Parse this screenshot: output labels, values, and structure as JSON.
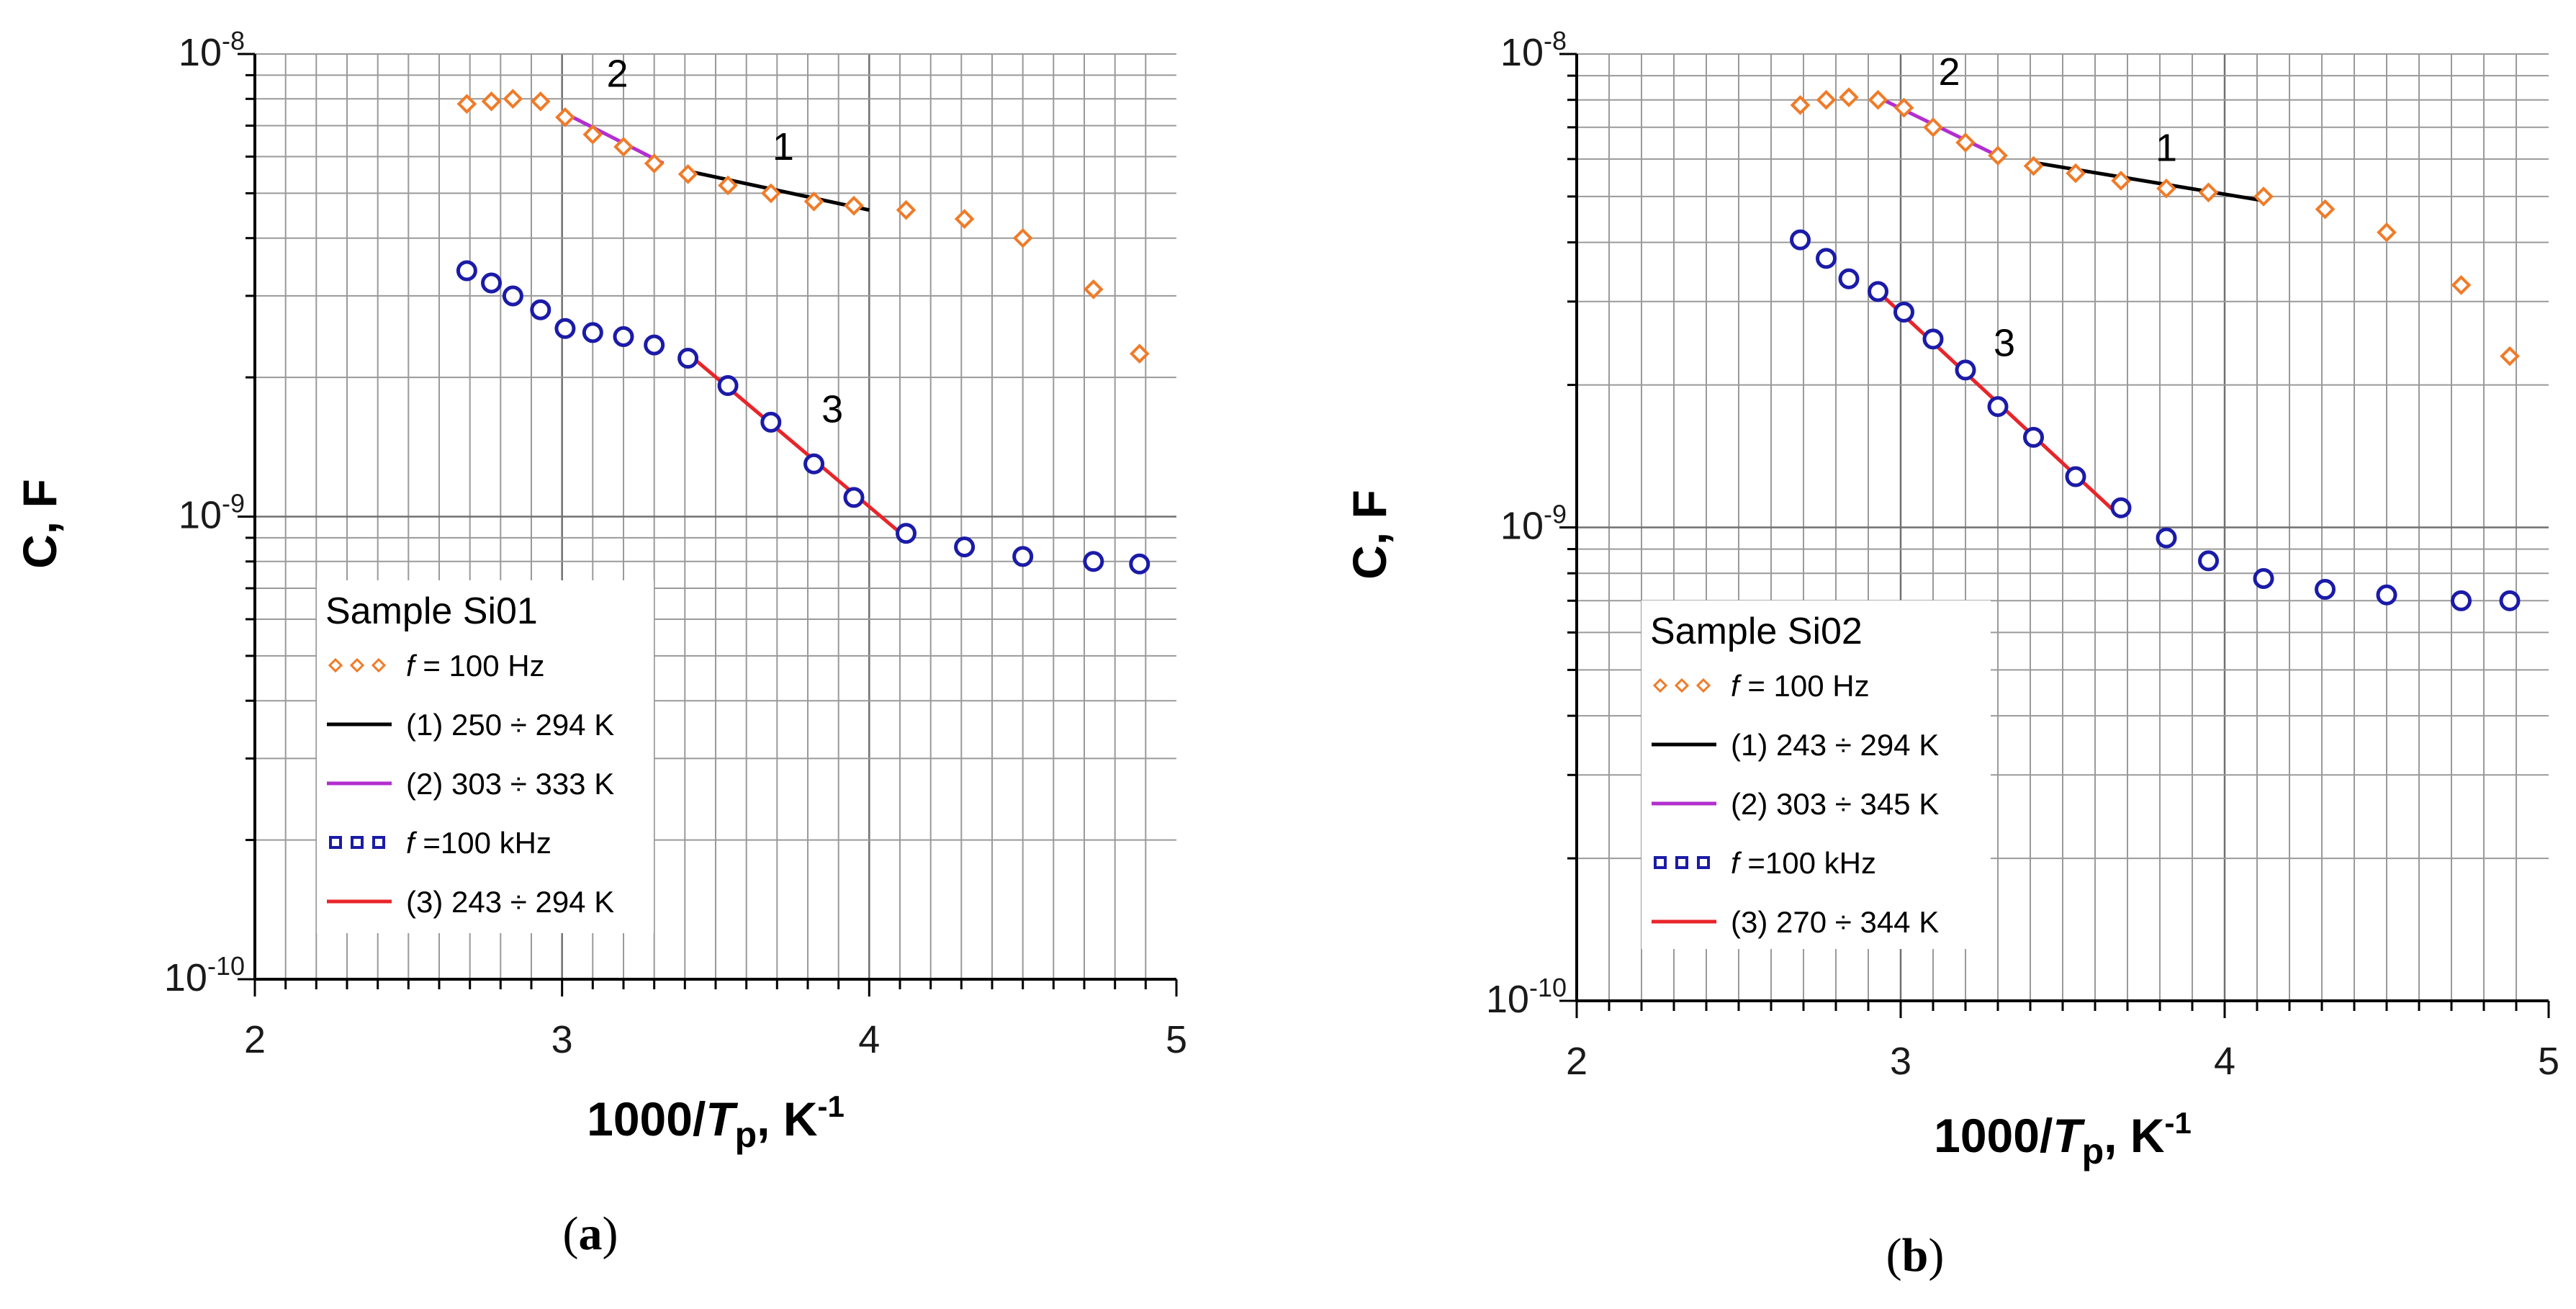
{
  "chart_data": [
    {
      "type": "scatter",
      "panel": "(a)",
      "panel_letter": "a",
      "xlabel": "1000/Tp, K-1",
      "ylabel": "C, F",
      "x_scale": "linear",
      "y_scale": "log",
      "xlim": [
        2,
        5
      ],
      "ylim": [
        1e-10,
        1e-08
      ],
      "x_ticks": [
        "2",
        "3",
        "4",
        "5"
      ],
      "y_ticks": [
        {
          "base": "10",
          "exp": "-10"
        },
        {
          "base": "10",
          "exp": "-9"
        },
        {
          "base": "10",
          "exp": "-8"
        }
      ],
      "grid": true,
      "legend": {
        "title": "Sample Si01",
        "placement": "lower-left",
        "entries": [
          {
            "kind": "marker",
            "color": "#f07b28",
            "italic": "f",
            "text": " = 100 Hz"
          },
          {
            "kind": "line",
            "color": "#000000",
            "text": "(1) 250 ÷ 294 K"
          },
          {
            "kind": "line",
            "color": "#b22fcf",
            "text": "(2) 303 ÷ 333 K"
          },
          {
            "kind": "marker",
            "color": "#1b1ba8",
            "italic": "f",
            "text": " =100 kHz"
          },
          {
            "kind": "line",
            "color": "#e8252a",
            "text": "(3) 243 ÷ 294 K"
          }
        ]
      },
      "series": [
        {
          "name": "f = 100 Hz",
          "marker": "diamond",
          "color": "#f07b28",
          "x": [
            2.69,
            2.77,
            2.84,
            2.93,
            3.01,
            3.1,
            3.2,
            3.3,
            3.41,
            3.54,
            3.68,
            3.82,
            3.95,
            4.12,
            4.31,
            4.5,
            4.73,
            4.88
          ],
          "y": [
            7.8e-09,
            7.9e-09,
            8e-09,
            7.9e-09,
            7.3e-09,
            6.7e-09,
            6.3e-09,
            5.8e-09,
            5.5e-09,
            5.2e-09,
            5e-09,
            4.8e-09,
            4.7e-09,
            4.6e-09,
            4.4e-09,
            4e-09,
            3.1e-09,
            2.25e-09
          ]
        },
        {
          "name": "f =100 kHz",
          "marker": "circle",
          "color": "#1b1ba8",
          "x": [
            2.69,
            2.77,
            2.84,
            2.93,
            3.01,
            3.1,
            3.2,
            3.3,
            3.41,
            3.54,
            3.68,
            3.82,
            3.95,
            4.12,
            4.31,
            4.5,
            4.73,
            4.88
          ],
          "y": [
            3.4e-09,
            3.2e-09,
            3e-09,
            2.8e-09,
            2.55e-09,
            2.5e-09,
            2.45e-09,
            2.35e-09,
            2.2e-09,
            1.92e-09,
            1.6e-09,
            1.3e-09,
            1.1e-09,
            9.2e-10,
            8.6e-10,
            8.2e-10,
            8e-10,
            7.9e-10
          ]
        }
      ],
      "fits": [
        {
          "label": "1",
          "color": "#000000",
          "x": [
            3.4,
            4.0
          ],
          "y": [
            5.6e-09,
            4.6e-09
          ],
          "label_x": 3.72,
          "label_y": 5.9e-09
        },
        {
          "label": "2",
          "color": "#b22fcf",
          "x": [
            3.0,
            3.33
          ],
          "y": [
            7.5e-09,
            5.8e-09
          ],
          "label_x": 3.18,
          "label_y": 8.5e-09
        },
        {
          "label": "3",
          "color": "#e8252a",
          "x": [
            3.41,
            4.12
          ],
          "y": [
            2.25e-09,
            9e-10
          ],
          "label_x": 3.88,
          "label_y": 1.6e-09
        }
      ]
    },
    {
      "type": "scatter",
      "panel": "(b)",
      "panel_letter": "b",
      "xlabel": "1000/Tp, K-1",
      "ylabel": "C, F",
      "x_scale": "linear",
      "y_scale": "log",
      "xlim": [
        2,
        5
      ],
      "ylim": [
        1e-10,
        1e-08
      ],
      "x_ticks": [
        "2",
        "3",
        "4",
        "5"
      ],
      "y_ticks": [
        {
          "base": "10",
          "exp": "-10"
        },
        {
          "base": "10",
          "exp": "-9"
        },
        {
          "base": "10",
          "exp": "-8"
        }
      ],
      "grid": true,
      "legend": {
        "title": "Sample Si02",
        "placement": "lower-left",
        "entries": [
          {
            "kind": "marker",
            "color": "#f07b28",
            "italic": "f",
            "text": " = 100 Hz"
          },
          {
            "kind": "line",
            "color": "#000000",
            "text": "(1) 243 ÷ 294 K"
          },
          {
            "kind": "line",
            "color": "#b22fcf",
            "text": "(2) 303 ÷ 345 K"
          },
          {
            "kind": "marker",
            "color": "#1b1ba8",
            "italic": "f",
            "text": " =100 kHz"
          },
          {
            "kind": "line",
            "color": "#e8252a",
            "text": "(3) 270 ÷ 344 K"
          }
        ]
      },
      "series": [
        {
          "name": "f = 100 Hz",
          "marker": "diamond",
          "color": "#f07b28",
          "x": [
            2.69,
            2.77,
            2.84,
            2.93,
            3.01,
            3.1,
            3.2,
            3.3,
            3.41,
            3.54,
            3.68,
            3.82,
            3.95,
            4.12,
            4.31,
            4.5,
            4.73,
            4.88
          ],
          "y": [
            7.8e-09,
            8e-09,
            8.1e-09,
            8e-09,
            7.7e-09,
            7e-09,
            6.5e-09,
            6.1e-09,
            5.8e-09,
            5.6e-09,
            5.4e-09,
            5.2e-09,
            5.1e-09,
            5e-09,
            4.7e-09,
            4.2e-09,
            3.25e-09,
            2.3e-09
          ]
        },
        {
          "name": "f =100 kHz",
          "marker": "circle",
          "color": "#1b1ba8",
          "x": [
            2.69,
            2.77,
            2.84,
            2.93,
            3.01,
            3.1,
            3.2,
            3.3,
            3.41,
            3.54,
            3.68,
            3.82,
            3.95,
            4.12,
            4.31,
            4.5,
            4.73,
            4.88
          ],
          "y": [
            4.05e-09,
            3.7e-09,
            3.35e-09,
            3.15e-09,
            2.85e-09,
            2.5e-09,
            2.15e-09,
            1.8e-09,
            1.55e-09,
            1.28e-09,
            1.1e-09,
            9.5e-10,
            8.5e-10,
            7.8e-10,
            7.4e-10,
            7.2e-10,
            7e-10,
            7e-10
          ]
        }
      ],
      "fits": [
        {
          "label": "1",
          "color": "#000000",
          "x": [
            3.41,
            4.12
          ],
          "y": [
            5.9e-09,
            4.9e-09
          ],
          "label_x": 3.82,
          "label_y": 5.95e-09
        },
        {
          "label": "2",
          "color": "#b22fcf",
          "x": [
            2.93,
            3.32
          ],
          "y": [
            8.1e-09,
            6e-09
          ],
          "label_x": 3.15,
          "label_y": 8.6e-09
        },
        {
          "label": "3",
          "color": "#e8252a",
          "x": [
            2.93,
            3.68
          ],
          "y": [
            3.15e-09,
            1.05e-09
          ],
          "label_x": 3.32,
          "label_y": 2.3e-09
        }
      ]
    }
  ]
}
